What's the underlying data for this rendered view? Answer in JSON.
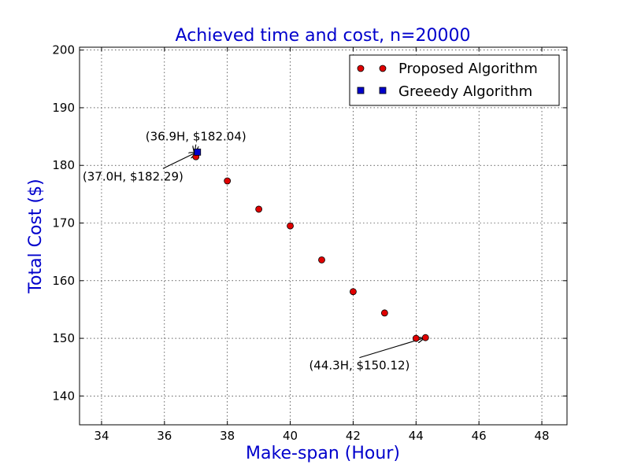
{
  "chart_data": {
    "type": "scatter",
    "title": "Achieved time and cost, n=20000",
    "xlabel": "Make-span (Hour)",
    "ylabel": "Total Cost ($)",
    "xlim": [
      33.3,
      48.8
    ],
    "ylim": [
      135,
      200.5
    ],
    "xticks": [
      34,
      36,
      38,
      40,
      42,
      44,
      46,
      48
    ],
    "yticks": [
      140,
      150,
      160,
      170,
      180,
      190,
      200
    ],
    "grid": true,
    "legend_position": "top-right",
    "series": [
      {
        "name": "Proposed Algorithm",
        "marker": "circle",
        "color": "#e00000",
        "x": [
          37.0,
          38.0,
          39.0,
          40.0,
          41.0,
          42.0,
          43.0,
          44.0,
          44.3
        ],
        "y": [
          181.5,
          177.3,
          172.4,
          169.5,
          163.6,
          158.1,
          154.4,
          150.0,
          150.12
        ]
      },
      {
        "name": "Greeedy Algorithm",
        "marker": "square",
        "color": "#0000cc",
        "x": [
          37.05
        ],
        "y": [
          182.3
        ]
      }
    ],
    "annotations": [
      {
        "text": "(36.9H, $182.04)",
        "target": [
          36.95,
          181.9
        ],
        "text_at": [
          37.0,
          184.3
        ],
        "anchor": "middle"
      },
      {
        "text": "(37.0H, $182.29)",
        "target": [
          37.05,
          182.3
        ],
        "text_at": [
          35.0,
          177.4
        ],
        "anchor": "middle"
      },
      {
        "text": "(44.3H, $150.12)",
        "target": [
          44.3,
          150.12
        ],
        "text_at": [
          42.2,
          144.6
        ],
        "anchor": "middle"
      }
    ],
    "colors": {
      "title": "#0000cc",
      "axis_label": "#0000cc"
    }
  }
}
